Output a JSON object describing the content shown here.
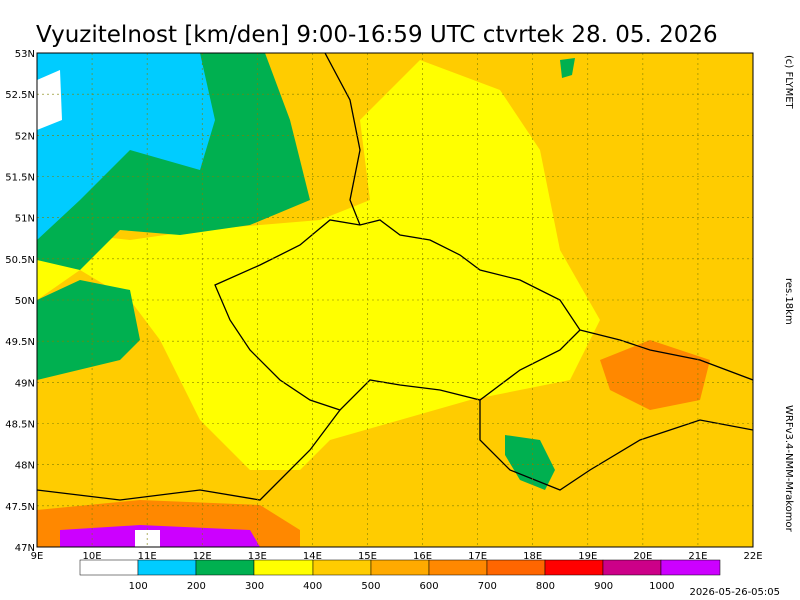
{
  "header": {
    "title": "Vyuzitelnost [km/den] 9:00-16:59 UTC ctvrtek 28. 05. 2026"
  },
  "side": {
    "copyright": "(c) FLYMET",
    "resolution": "res.18km",
    "model": "WRFv3.4-NMM-Mrakomor"
  },
  "lat_labels": [
    "53N",
    "52.5N",
    "52N",
    "51.5N",
    "51N",
    "50.5N",
    "50N",
    "49.5N",
    "49N",
    "48.5N",
    "48N",
    "47.5N",
    "47N"
  ],
  "lon_labels": [
    "9E",
    "10E",
    "11E",
    "12E",
    "13E",
    "14E",
    "15E",
    "16E",
    "17E",
    "18E",
    "19E",
    "20E",
    "21E",
    "22E"
  ],
  "legend": {
    "labels": [
      "100",
      "200",
      "300",
      "400",
      "500",
      "600",
      "700",
      "800",
      "900",
      "1000"
    ]
  },
  "footer": {
    "timestamp": "2026-05-26-05:05"
  }
}
